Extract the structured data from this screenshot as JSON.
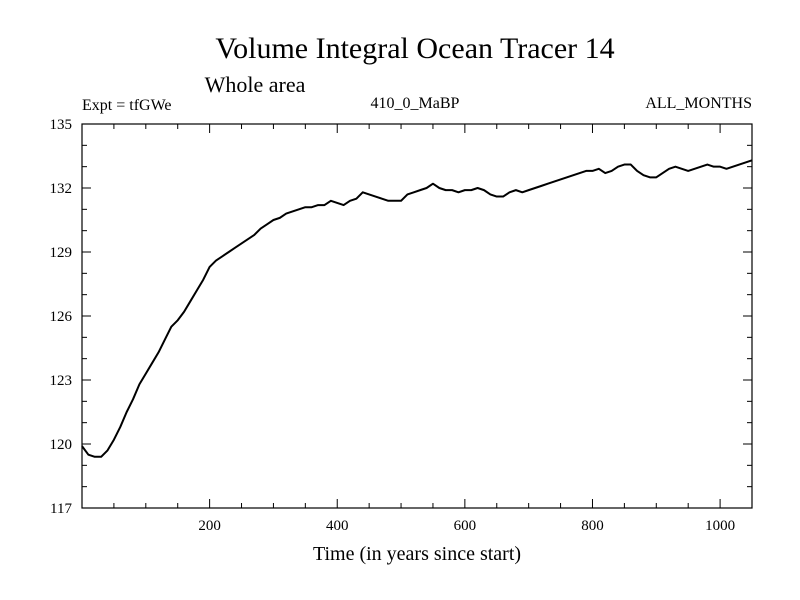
{
  "chart_data": {
    "type": "line",
    "title": "Volume Integral Ocean Tracer 14",
    "subtitle": "Whole area",
    "annotations": {
      "left": "Expt = tfGWe",
      "center": "410_0_MaBP",
      "right": "ALL_MONTHS"
    },
    "xlabel": "Time (in years since start)",
    "ylabel": "",
    "xlim": [
      0,
      1050
    ],
    "ylim": [
      117,
      135
    ],
    "xticks": [
      200,
      400,
      600,
      800,
      1000
    ],
    "yticks": [
      117,
      120,
      123,
      126,
      129,
      132,
      135
    ],
    "grid": false,
    "series": [
      {
        "name": "",
        "color": "#000000",
        "x": [
          0,
          10,
          20,
          30,
          40,
          50,
          60,
          70,
          80,
          90,
          100,
          110,
          120,
          130,
          140,
          150,
          160,
          170,
          180,
          190,
          200,
          210,
          220,
          230,
          240,
          250,
          260,
          270,
          280,
          290,
          300,
          310,
          320,
          330,
          340,
          350,
          360,
          370,
          380,
          390,
          400,
          410,
          420,
          430,
          440,
          450,
          460,
          470,
          480,
          490,
          500,
          510,
          520,
          530,
          540,
          550,
          560,
          570,
          580,
          590,
          600,
          610,
          620,
          630,
          640,
          650,
          660,
          670,
          680,
          690,
          700,
          710,
          720,
          730,
          740,
          750,
          760,
          770,
          780,
          790,
          800,
          810,
          820,
          830,
          840,
          850,
          860,
          870,
          880,
          890,
          900,
          910,
          920,
          930,
          940,
          950,
          960,
          970,
          980,
          990,
          1000,
          1010,
          1020,
          1030,
          1040,
          1050
        ],
        "y": [
          119.9,
          119.5,
          119.4,
          119.4,
          119.7,
          120.2,
          120.8,
          121.5,
          122.1,
          122.8,
          123.3,
          123.8,
          124.3,
          124.9,
          125.5,
          125.8,
          126.2,
          126.7,
          127.2,
          127.7,
          128.3,
          128.6,
          128.8,
          129.0,
          129.2,
          129.4,
          129.6,
          129.8,
          130.1,
          130.3,
          130.5,
          130.6,
          130.8,
          130.9,
          131.0,
          131.1,
          131.1,
          131.2,
          131.2,
          131.4,
          131.3,
          131.2,
          131.4,
          131.5,
          131.8,
          131.7,
          131.6,
          131.5,
          131.4,
          131.4,
          131.4,
          131.7,
          131.8,
          131.9,
          132.0,
          132.2,
          132.0,
          131.9,
          131.9,
          131.8,
          131.9,
          131.9,
          132.0,
          131.9,
          131.7,
          131.6,
          131.6,
          131.8,
          131.9,
          131.8,
          131.9,
          132.0,
          132.1,
          132.2,
          132.3,
          132.4,
          132.5,
          132.6,
          132.7,
          132.8,
          132.8,
          132.9,
          132.7,
          132.8,
          133.0,
          133.1,
          133.1,
          132.8,
          132.6,
          132.5,
          132.5,
          132.7,
          132.9,
          133.0,
          132.9,
          132.8,
          132.9,
          133.0,
          133.1,
          133.0,
          133.0,
          132.9,
          133.0,
          133.1,
          133.2,
          133.3
        ]
      }
    ]
  }
}
